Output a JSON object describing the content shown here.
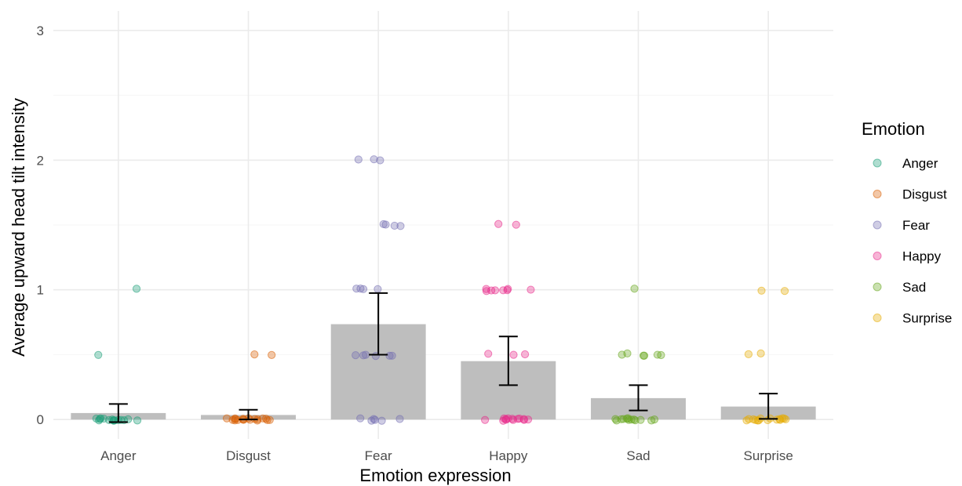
{
  "chart_data": {
    "type": "bar",
    "categories": [
      "Anger",
      "Disgust",
      "Fear",
      "Happy",
      "Sad",
      "Surprise"
    ],
    "values": [
      0.05,
      0.035,
      0.735,
      0.45,
      0.165,
      0.1
    ],
    "error_bars": {
      "lower": [
        -0.02,
        0.0,
        0.5,
        0.265,
        0.07,
        0.005
      ],
      "upper": [
        0.12,
        0.075,
        0.975,
        0.64,
        0.265,
        0.2
      ]
    },
    "points": [
      [
        1.0,
        0.5,
        0,
        0,
        0,
        0,
        0,
        0,
        0,
        0,
        0,
        0,
        0,
        0,
        0,
        0,
        0
      ],
      [
        0.5,
        0.5,
        0,
        0,
        0,
        0,
        0,
        0,
        0,
        0,
        0,
        0,
        0,
        0,
        0,
        0,
        0,
        0,
        0,
        0
      ],
      [
        2,
        2,
        2,
        1.5,
        1.5,
        1.5,
        1.5,
        1,
        1,
        1,
        1,
        0.5,
        0.5,
        0.5,
        0.5,
        0.5,
        0.5,
        0,
        0,
        0,
        0,
        0,
        0
      ],
      [
        1.5,
        1.5,
        1,
        1,
        1,
        1,
        1,
        1,
        1,
        1,
        0.5,
        0.5,
        0.5,
        0,
        0,
        0,
        0,
        0,
        0,
        0,
        0,
        0,
        0,
        0,
        0,
        0
      ],
      [
        1,
        0.5,
        0.5,
        0.5,
        0.5,
        0.5,
        0.5,
        0,
        0,
        0,
        0,
        0,
        0,
        0,
        0,
        0,
        0,
        0,
        0,
        0
      ],
      [
        1,
        1,
        0.5,
        0.5,
        0,
        0,
        0,
        0,
        0,
        0,
        0,
        0,
        0,
        0,
        0,
        0,
        0,
        0,
        0
      ]
    ],
    "ylim": [
      -0.15,
      3.15
    ],
    "yticks": [
      "0",
      "1",
      "2",
      "3"
    ],
    "xlabel": "Emotion expression",
    "ylabel": "Average upward head tilt intensity",
    "legend": {
      "title": "Emotion",
      "position": "right",
      "entries": [
        "Anger",
        "Disgust",
        "Fear",
        "Happy",
        "Sad",
        "Surprise"
      ]
    },
    "colors": {
      "Anger": "#1b9e77",
      "Disgust": "#d95f02",
      "Fear": "#7570b3",
      "Happy": "#e7298a",
      "Sad": "#66a61e",
      "Surprise": "#e6ab02",
      "bar": "#bebebe",
      "errorbar": "#000000"
    },
    "grid": true
  }
}
